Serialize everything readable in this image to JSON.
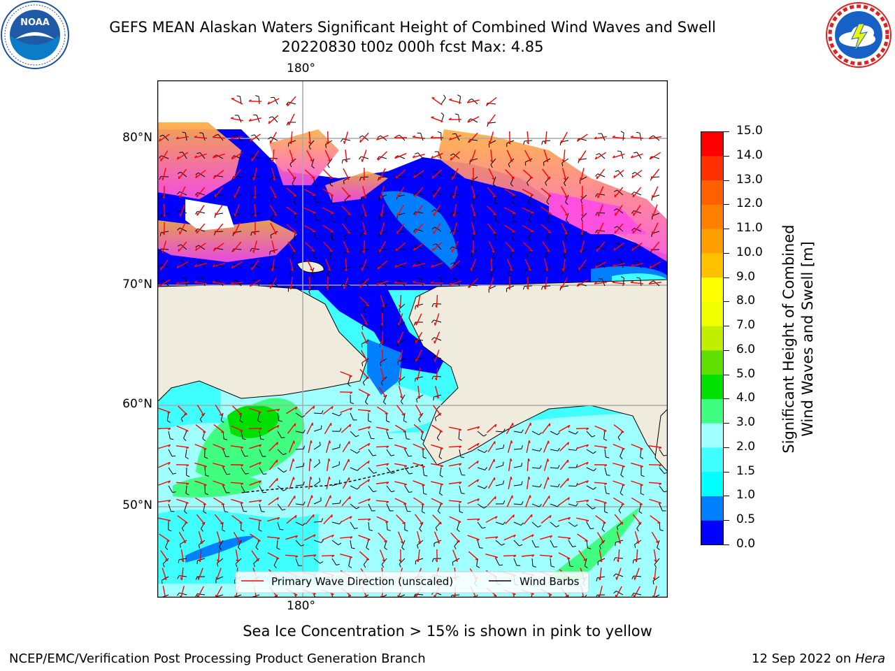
{
  "header": {
    "title_line1": "GEFS MEAN Alaskan Waters Significant Height of Combined Wind Waves and Swell",
    "title_line2": "20220830 t00z 000h fcst   Max: 4.85"
  },
  "logos": {
    "noaa": {
      "text": "NOAA",
      "ring_text": "NATIONAL OCEANIC AND ATMOSPHERIC ADMINISTRATION · U.S. DEPARTMENT OF COMMERCE"
    },
    "nws": {
      "ring_text": "NATIONAL WEATHER SERVICE"
    }
  },
  "map": {
    "lon_label_top": "180°",
    "lon_label_bottom": "180°",
    "lat_labels": [
      "80°N",
      "70°N",
      "60°N",
      "50°N"
    ],
    "land_color": "#efecdd",
    "legend": {
      "wave_direction": "Primary Wave Direction (unscaled)",
      "wind_barbs": "Wind Barbs"
    }
  },
  "colorbar": {
    "label_line1": "Significant Height of Combined",
    "label_line2": "Wind Waves and Swell [m]",
    "ticks": [
      "15.0",
      "14.0",
      "13.0",
      "12.0",
      "11.0",
      "10.0",
      "9.0",
      "8.0",
      "7.0",
      "6.0",
      "5.0",
      "4.0",
      "3.0",
      "2.0",
      "1.5",
      "1.0",
      "0.5",
      "0.0"
    ],
    "colors": [
      "#0000ff",
      "#0080ff",
      "#00ffff",
      "#40ffff",
      "#a0ffff",
      "#40ff80",
      "#00e000",
      "#60e000",
      "#c0f000",
      "#f0ff00",
      "#ffff00",
      "#ffc000",
      "#ffa000",
      "#ff8000",
      "#ff6000",
      "#ff3000",
      "#ff0000"
    ]
  },
  "footer": {
    "note": "Sea Ice Concentration > 15% is shown in pink to yellow",
    "left": "NCEP/EMC/Verification Post Processing Product Generation Branch",
    "right_prefix": "12 Sep 2022 on ",
    "right_host": "Hera"
  }
}
